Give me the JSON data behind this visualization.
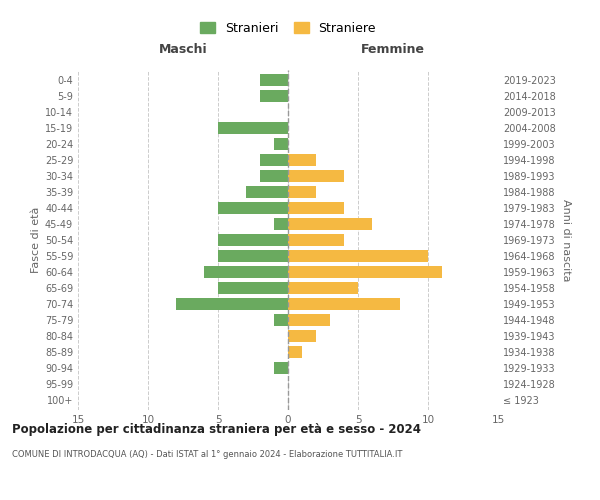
{
  "age_groups": [
    "100+",
    "95-99",
    "90-94",
    "85-89",
    "80-84",
    "75-79",
    "70-74",
    "65-69",
    "60-64",
    "55-59",
    "50-54",
    "45-49",
    "40-44",
    "35-39",
    "30-34",
    "25-29",
    "20-24",
    "15-19",
    "10-14",
    "5-9",
    "0-4"
  ],
  "birth_years": [
    "≤ 1923",
    "1924-1928",
    "1929-1933",
    "1934-1938",
    "1939-1943",
    "1944-1948",
    "1949-1953",
    "1954-1958",
    "1959-1963",
    "1964-1968",
    "1969-1973",
    "1974-1978",
    "1979-1983",
    "1984-1988",
    "1989-1993",
    "1994-1998",
    "1999-2003",
    "2004-2008",
    "2009-2013",
    "2014-2018",
    "2019-2023"
  ],
  "maschi": [
    0,
    0,
    1,
    0,
    0,
    1,
    8,
    5,
    6,
    5,
    5,
    1,
    5,
    3,
    2,
    2,
    1,
    5,
    0,
    2,
    2
  ],
  "femmine": [
    0,
    0,
    0,
    1,
    2,
    3,
    8,
    5,
    11,
    10,
    4,
    6,
    4,
    2,
    4,
    2,
    0,
    0,
    0,
    0,
    0
  ],
  "maschi_color": "#6aaa5f",
  "femmine_color": "#f5b942",
  "background_color": "#ffffff",
  "grid_color": "#cccccc",
  "title": "Popolazione per cittadinanza straniera per età e sesso - 2024",
  "subtitle": "COMUNE DI INTRODACQUA (AQ) - Dati ISTAT al 1° gennaio 2024 - Elaborazione TUTTITALIA.IT",
  "xlabel_left": "Maschi",
  "xlabel_right": "Femmine",
  "ylabel_left": "Fasce di età",
  "ylabel_right": "Anni di nascita",
  "legend_maschi": "Stranieri",
  "legend_femmine": "Straniere",
  "xlim": 15,
  "bar_height": 0.75
}
